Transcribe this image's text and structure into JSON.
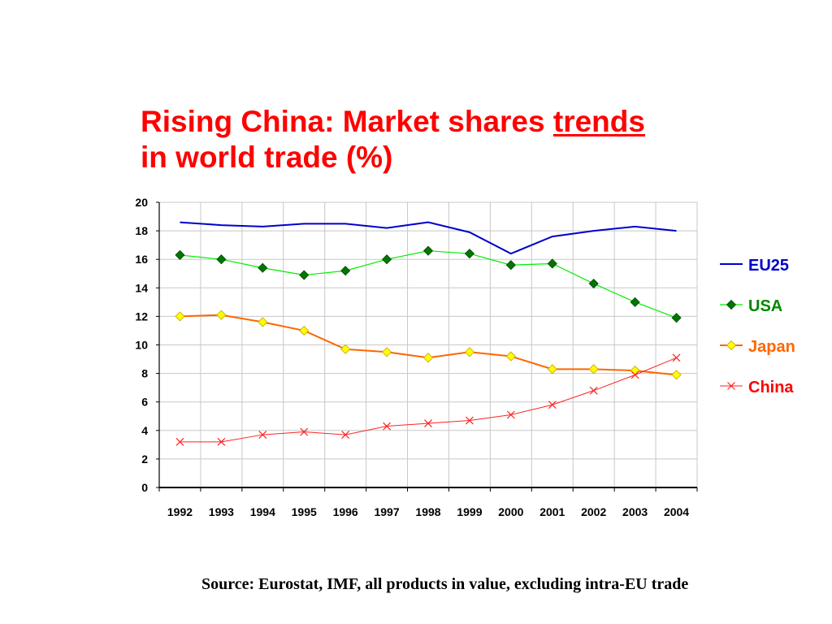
{
  "title": {
    "line1_prefix": "Rising China: Market shares ",
    "line1_emph": "trends",
    "line2": "in world trade (%)"
  },
  "source": "Source: Eurostat, IMF, all products in value, excluding intra-EU trade",
  "chart_data": {
    "type": "line",
    "title": "Rising China: Market shares trends in world trade (%)",
    "xlabel": "",
    "ylabel": "",
    "categories": [
      "1992",
      "1993",
      "1994",
      "1995",
      "1996",
      "1997",
      "1998",
      "1999",
      "2000",
      "2001",
      "2002",
      "2003",
      "2004"
    ],
    "ylim": [
      0,
      20
    ],
    "yticks": [
      0,
      2,
      4,
      6,
      8,
      10,
      12,
      14,
      16,
      18,
      20
    ],
    "grid": true,
    "legend_position": "right",
    "series": [
      {
        "name": "EU25",
        "color": "#0000cc",
        "marker": "none",
        "stroke_width": 2,
        "values": [
          18.6,
          18.4,
          18.3,
          18.5,
          18.5,
          18.2,
          18.6,
          17.9,
          16.4,
          17.6,
          18.0,
          18.3,
          18.0
        ]
      },
      {
        "name": "USA",
        "color": "#00ee00",
        "marker_color": "#007700",
        "marker": "diamond",
        "stroke_width": 1.2,
        "values": [
          16.3,
          16.0,
          15.4,
          14.9,
          15.2,
          16.0,
          16.6,
          16.4,
          15.6,
          15.7,
          14.3,
          13.0,
          11.9
        ]
      },
      {
        "name": "Japan",
        "color": "#ff6600",
        "marker_color": "#ffff00",
        "marker": "diamond",
        "stroke_width": 2,
        "values": [
          12.0,
          12.1,
          11.6,
          11.0,
          9.7,
          9.5,
          9.1,
          9.5,
          9.2,
          8.3,
          8.3,
          8.2,
          7.9
        ]
      },
      {
        "name": "China",
        "color": "#ff2222",
        "marker": "x",
        "stroke_width": 1,
        "values": [
          3.2,
          3.2,
          3.7,
          3.9,
          3.7,
          4.3,
          4.5,
          4.7,
          5.1,
          5.8,
          6.8,
          7.9,
          9.1
        ]
      }
    ]
  }
}
